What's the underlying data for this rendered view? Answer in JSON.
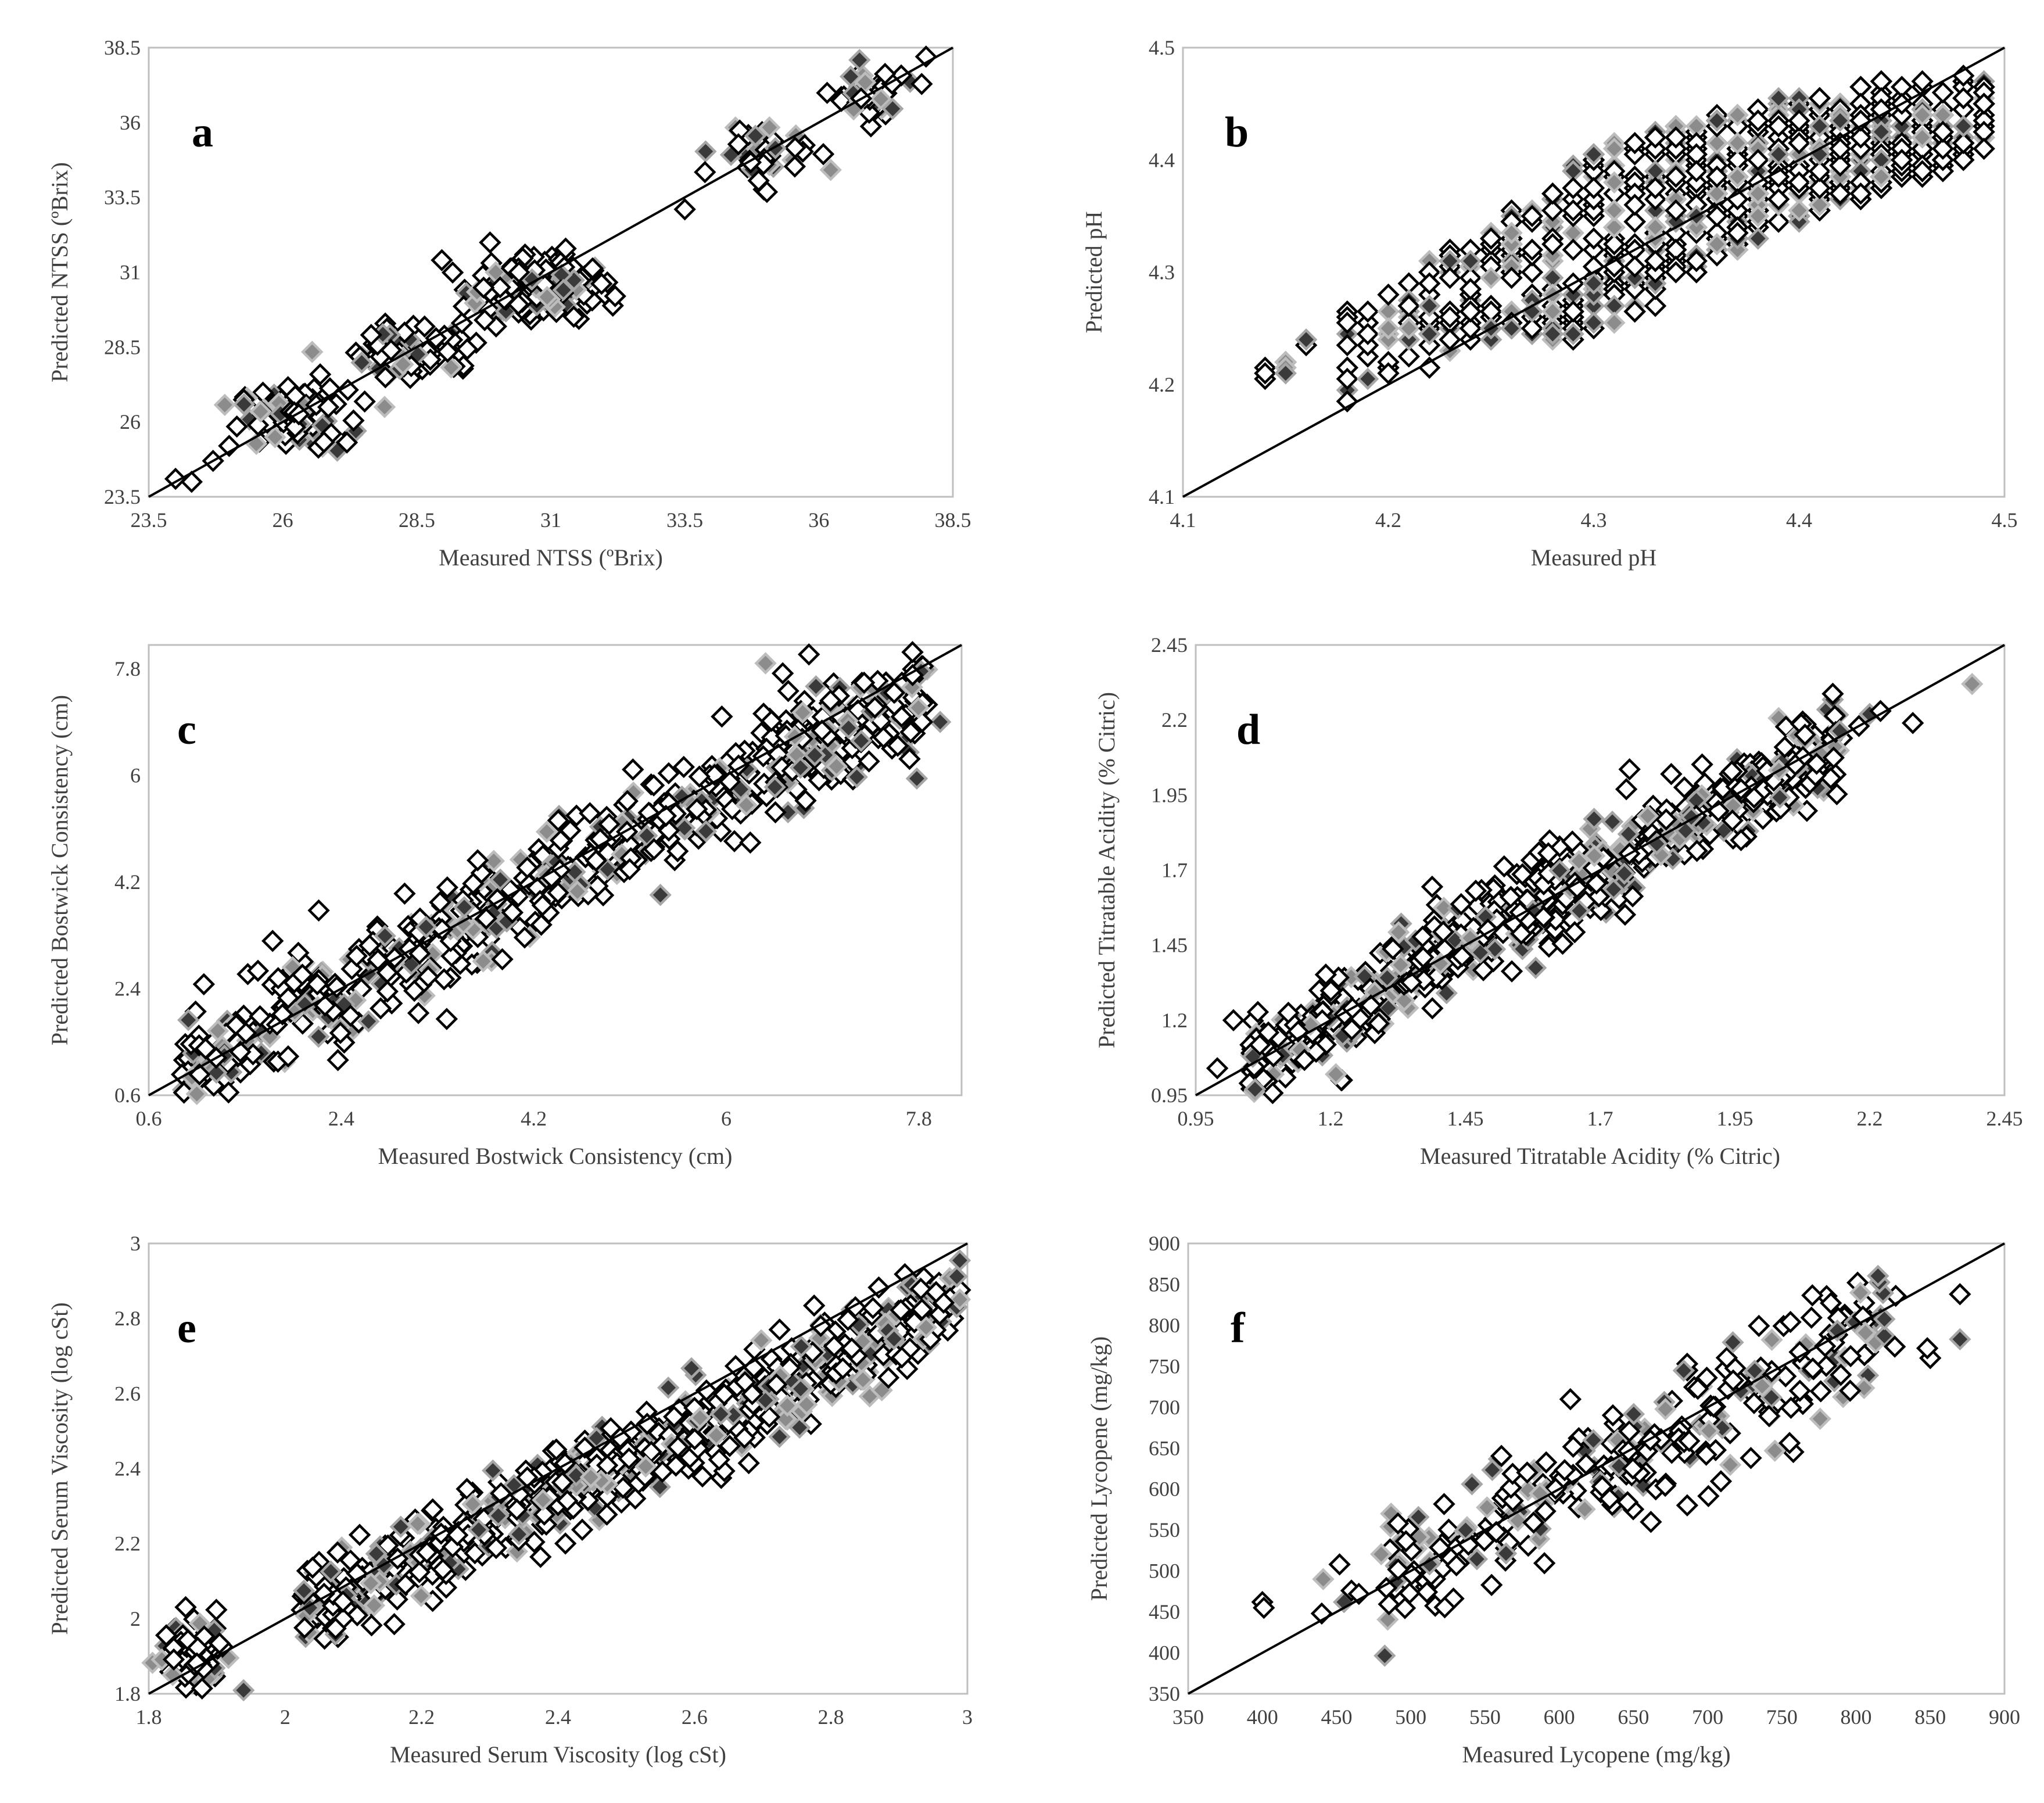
{
  "chart_data": [
    {
      "panel_label": "a",
      "type": "scatter",
      "xlabel": "Measured NTSS (ºBrix)",
      "ylabel": "Predicted NTSS (ºBrix)",
      "xlim": [
        23.5,
        38.5
      ],
      "ylim": [
        23.5,
        38.5
      ],
      "xticks": [
        23.5,
        26,
        28.5,
        31,
        33.5,
        36,
        38.5
      ],
      "yticks": [
        23.5,
        26,
        28.5,
        31,
        33.5,
        36,
        38.5
      ],
      "xtick_labels": [
        "23.5",
        "26",
        "28.5",
        "31",
        "33.5",
        "36",
        "38.5"
      ],
      "ytick_labels": [
        "23.5",
        "26",
        "28.5",
        "31",
        "33.5",
        "36",
        "38.5"
      ],
      "reference_line": "y = x",
      "clusters": [
        {
          "cx": 26.2,
          "cy": 26.1,
          "sx": 0.5,
          "sy": 0.5,
          "n": 110
        },
        {
          "cx": 28.5,
          "cy": 28.4,
          "sx": 0.6,
          "sy": 0.45,
          "n": 80
        },
        {
          "cx": 30.6,
          "cy": 30.5,
          "sx": 0.6,
          "sy": 0.55,
          "n": 170
        },
        {
          "cx": 35.0,
          "cy": 35.0,
          "sx": 0.45,
          "sy": 0.5,
          "n": 40
        },
        {
          "cx": 36.9,
          "cy": 36.9,
          "sx": 0.35,
          "sy": 0.4,
          "n": 50
        }
      ],
      "points": [
        {
          "x": 24.0,
          "y": 24.1
        },
        {
          "x": 24.3,
          "y": 24.0
        },
        {
          "x": 24.7,
          "y": 24.7
        },
        {
          "x": 25.0,
          "y": 25.2
        },
        {
          "x": 33.5,
          "y": 33.1
        },
        {
          "x": 32.2,
          "y": 30.2
        },
        {
          "x": 27.9,
          "y": 26.5
        },
        {
          "x": 38.0,
          "y": 38.2
        }
      ]
    },
    {
      "panel_label": "b",
      "type": "scatter",
      "xlabel": "Measured pH",
      "ylabel": "Predicted pH",
      "xlim": [
        4.1,
        4.5
      ],
      "ylim": [
        4.1,
        4.5
      ],
      "xticks": [
        4.1,
        4.2,
        4.3,
        4.4,
        4.5
      ],
      "yticks": [
        4.1,
        4.2,
        4.3,
        4.4,
        4.5
      ],
      "xtick_labels": [
        "4.1",
        "4.2",
        "4.3",
        "4.4",
        "4.5"
      ],
      "ytick_labels": [
        "4.1",
        "4.2",
        "4.3",
        "4.4",
        "4.5"
      ],
      "reference_line": "y = x",
      "columns": {
        "x": [
          4.14,
          4.15,
          4.16,
          4.18,
          4.19,
          4.2,
          4.21,
          4.22,
          4.23,
          4.24,
          4.25,
          4.26,
          4.27,
          4.28,
          4.29,
          4.3,
          4.31,
          4.32,
          4.33,
          4.34,
          4.35,
          4.36,
          4.37,
          4.38,
          4.39,
          4.4,
          4.41,
          4.42,
          4.43,
          4.44,
          4.45,
          4.46,
          4.47,
          4.48,
          4.49
        ],
        "y_center": [
          4.215,
          4.215,
          4.24,
          4.225,
          4.23,
          4.24,
          4.25,
          4.265,
          4.27,
          4.28,
          4.285,
          4.3,
          4.305,
          4.31,
          4.32,
          4.33,
          4.335,
          4.345,
          4.35,
          4.36,
          4.365,
          4.375,
          4.38,
          4.39,
          4.395,
          4.4,
          4.405,
          4.41,
          4.415,
          4.42,
          4.425,
          4.43,
          4.43,
          4.435,
          4.44
        ],
        "y_spread": [
          0.012,
          0.015,
          0.008,
          0.04,
          0.045,
          0.045,
          0.045,
          0.05,
          0.05,
          0.05,
          0.05,
          0.055,
          0.06,
          0.07,
          0.08,
          0.08,
          0.08,
          0.08,
          0.08,
          0.07,
          0.07,
          0.065,
          0.06,
          0.06,
          0.06,
          0.055,
          0.055,
          0.05,
          0.05,
          0.05,
          0.045,
          0.045,
          0.04,
          0.04,
          0.035
        ],
        "n": [
          3,
          4,
          3,
          10,
          8,
          10,
          12,
          14,
          16,
          18,
          20,
          22,
          25,
          28,
          30,
          32,
          33,
          34,
          34,
          34,
          34,
          34,
          34,
          34,
          34,
          34,
          34,
          34,
          34,
          32,
          30,
          28,
          24,
          20,
          16
        ]
      }
    },
    {
      "panel_label": "c",
      "type": "scatter",
      "xlabel": "Measured Bostwick Consistency (cm)",
      "ylabel": "Predicted Bostwick Consistency (cm)",
      "xlim": [
        0.6,
        8.2
      ],
      "ylim": [
        0.6,
        8.2
      ],
      "xticks": [
        0.6,
        2.4,
        4.2,
        6,
        7.8
      ],
      "yticks": [
        0.6,
        2.4,
        4.2,
        6,
        7.8
      ],
      "xtick_labels": [
        "0.6",
        "2.4",
        "4.2",
        "6",
        "7.8"
      ],
      "ytick_labels": [
        "0.6",
        "2.4",
        "4.2",
        "6",
        "7.8"
      ],
      "reference_line": "y = x",
      "band": {
        "x_from": 0.9,
        "x_to": 7.9,
        "intercept": 0.2,
        "slope": 0.92,
        "spread": 0.42,
        "n": 620
      },
      "clusters": [
        {
          "cx": 7.0,
          "cy": 6.8,
          "sx": 0.45,
          "sy": 0.5,
          "n": 70
        }
      ]
    },
    {
      "panel_label": "d",
      "type": "scatter",
      "xlabel": "Measured Titratable Acidity (% Citric)",
      "ylabel": "Predicted Titratable Acidity (% Citric)",
      "xlim": [
        0.95,
        2.45
      ],
      "ylim": [
        0.95,
        2.45
      ],
      "xticks": [
        0.95,
        1.2,
        1.45,
        1.7,
        1.95,
        2.2,
        2.45
      ],
      "yticks": [
        0.95,
        1.2,
        1.45,
        1.7,
        1.95,
        2.2,
        2.45
      ],
      "xtick_labels": [
        "0.95",
        "1.2",
        "1.45",
        "1.7",
        "1.95",
        "2.2",
        "2.45"
      ],
      "ytick_labels": [
        "0.95",
        "1.2",
        "1.45",
        "1.7",
        "1.95",
        "2.2",
        "2.45"
      ],
      "reference_line": "y = x",
      "band": {
        "x_from": 1.05,
        "x_to": 2.15,
        "intercept": 0.05,
        "slope": 0.97,
        "spread": 0.075,
        "n": 720
      },
      "points": [
        {
          "x": 0.99,
          "y": 1.04
        },
        {
          "x": 1.02,
          "y": 1.2
        },
        {
          "x": 1.05,
          "y": 0.99
        },
        {
          "x": 1.06,
          "y": 0.97
        },
        {
          "x": 1.22,
          "y": 1.0
        },
        {
          "x": 1.21,
          "y": 1.02
        },
        {
          "x": 2.2,
          "y": 2.22
        },
        {
          "x": 2.22,
          "y": 2.23
        },
        {
          "x": 2.28,
          "y": 2.19
        },
        {
          "x": 2.39,
          "y": 2.32
        },
        {
          "x": 2.18,
          "y": 2.18
        }
      ]
    },
    {
      "panel_label": "e",
      "type": "scatter",
      "xlabel": "Measured Serum Viscosity (log cSt)",
      "ylabel": "Predicted Serum Viscosity (log cSt)",
      "xlim": [
        1.8,
        3.0
      ],
      "ylim": [
        1.8,
        3.0
      ],
      "xticks": [
        1.8,
        2,
        2.2,
        2.4,
        2.6,
        2.8,
        3
      ],
      "yticks": [
        1.8,
        2,
        2.2,
        2.4,
        2.6,
        2.8,
        3
      ],
      "xtick_labels": [
        "1.8",
        "2",
        "2.2",
        "2.4",
        "2.6",
        "2.8",
        "3"
      ],
      "ytick_labels": [
        "1.8",
        "2",
        "2.2",
        "2.4",
        "2.6",
        "2.8",
        "3"
      ],
      "reference_line": "y = x",
      "band": {
        "x_from": 2.02,
        "x_to": 2.99,
        "intercept": 0.3,
        "slope": 0.85,
        "spread": 0.06,
        "n": 680
      },
      "clusters": [
        {
          "cx": 1.87,
          "cy": 1.9,
          "sx": 0.025,
          "sy": 0.05,
          "n": 80
        }
      ]
    },
    {
      "panel_label": "f",
      "type": "scatter",
      "xlabel": "Measured Lycopene (mg/kg)",
      "ylabel": "Predicted Lycopene (mg/kg)",
      "xlim": [
        350,
        900
      ],
      "ylim": [
        350,
        900
      ],
      "xticks": [
        350,
        400,
        450,
        500,
        550,
        600,
        650,
        700,
        750,
        800,
        850,
        900
      ],
      "yticks": [
        350,
        400,
        450,
        500,
        550,
        600,
        650,
        700,
        750,
        800,
        850,
        900
      ],
      "xtick_labels": [
        "350",
        "400",
        "450",
        "500",
        "550",
        "600",
        "650",
        "700",
        "750",
        "800",
        "850",
        "900"
      ],
      "ytick_labels": [
        "350",
        "400",
        "450",
        "500",
        "550",
        "600",
        "650",
        "700",
        "750",
        "800",
        "850",
        "900"
      ],
      "reference_line": "y = x",
      "band": {
        "x_from": 480,
        "x_to": 830,
        "intercept": 75,
        "slope": 0.87,
        "spread": 38,
        "n": 300
      },
      "points": [
        {
          "x": 400,
          "y": 462
        },
        {
          "x": 401,
          "y": 455
        },
        {
          "x": 440,
          "y": 448
        },
        {
          "x": 441,
          "y": 490
        },
        {
          "x": 452,
          "y": 508
        },
        {
          "x": 455,
          "y": 462
        },
        {
          "x": 460,
          "y": 476
        },
        {
          "x": 465,
          "y": 472
        },
        {
          "x": 850,
          "y": 760
        },
        {
          "x": 848,
          "y": 772
        },
        {
          "x": 870,
          "y": 838
        },
        {
          "x": 870,
          "y": 783
        }
      ]
    }
  ]
}
